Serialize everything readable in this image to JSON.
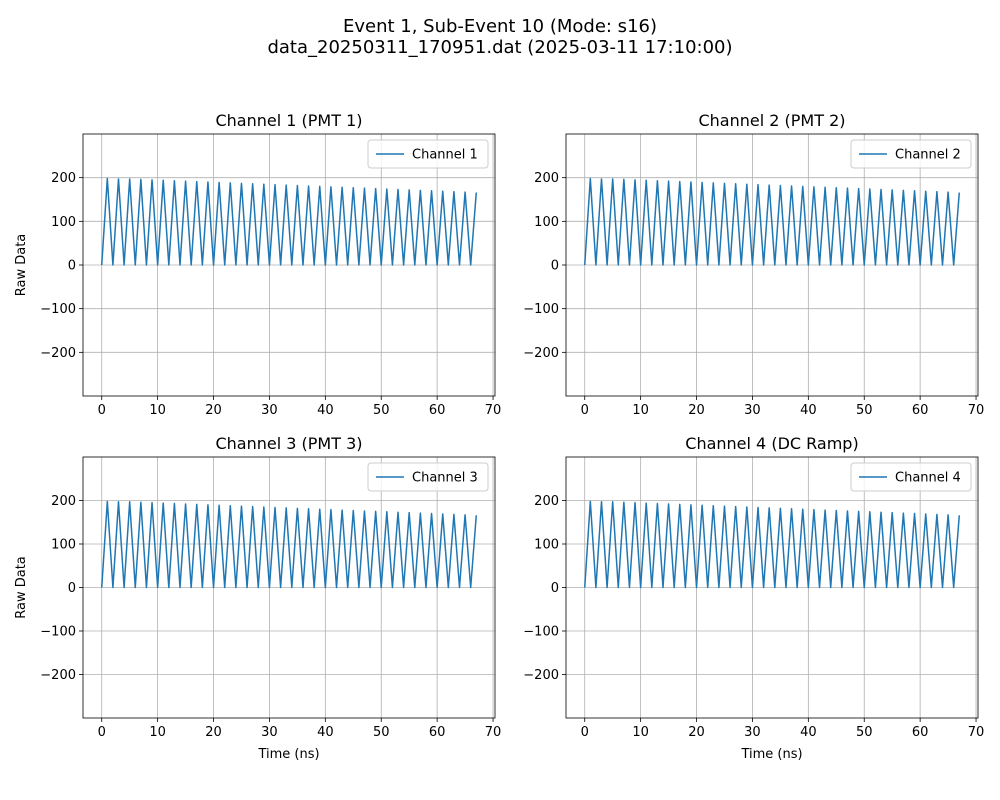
{
  "figure": {
    "title_line1": "Event 1, Sub-Event 10 (Mode: s16)",
    "title_line2": "data_20250311_170951.dat (2025-03-11 17:10:00)"
  },
  "colors": {
    "series": "#1f77b4",
    "grid": "#b0b0b0",
    "axes": "#000000"
  },
  "chart_data": [
    {
      "type": "line",
      "title": "Channel 1 (PMT 1)",
      "xlabel": "",
      "ylabel": "Raw Data",
      "xlim": [
        -3.35,
        70.35
      ],
      "ylim": [
        -300,
        300
      ],
      "xticks": [
        0,
        10,
        20,
        30,
        40,
        50,
        60,
        70
      ],
      "yticks": [
        -200,
        -100,
        0,
        100,
        200
      ],
      "grid": true,
      "legend": "upper right",
      "series": [
        {
          "name": "Channel 1",
          "x": [
            0,
            1,
            2,
            3,
            4,
            5,
            6,
            7,
            8,
            9,
            10,
            11,
            12,
            13,
            14,
            15,
            16,
            17,
            18,
            19,
            20,
            21,
            22,
            23,
            24,
            25,
            26,
            27,
            28,
            29,
            30,
            31,
            32,
            33,
            34,
            35,
            36,
            37,
            38,
            39,
            40,
            41,
            42,
            43,
            44,
            45,
            46,
            47,
            48,
            49,
            50,
            51,
            52,
            53,
            54,
            55,
            56,
            57,
            58,
            59,
            60,
            61,
            62,
            63,
            64,
            65,
            66,
            67
          ],
          "y": [
            0,
            198,
            0,
            197,
            0,
            197,
            0,
            196,
            0,
            195,
            0,
            194,
            0,
            193,
            0,
            192,
            0,
            191,
            0,
            190,
            0,
            189,
            0,
            188,
            0,
            187,
            0,
            186,
            0,
            185,
            0,
            184,
            0,
            183,
            0,
            182,
            0,
            181,
            0,
            180,
            0,
            179,
            0,
            178,
            0,
            177,
            0,
            176,
            0,
            175,
            0,
            174,
            0,
            173,
            0,
            172,
            0,
            171,
            0,
            170,
            0,
            169,
            0,
            168,
            0,
            167,
            0,
            166
          ]
        }
      ]
    },
    {
      "type": "line",
      "title": "Channel 2 (PMT 2)",
      "xlabel": "",
      "ylabel": "",
      "xlim": [
        -3.35,
        70.35
      ],
      "ylim": [
        -300,
        300
      ],
      "xticks": [
        0,
        10,
        20,
        30,
        40,
        50,
        60,
        70
      ],
      "yticks": [
        -200,
        -100,
        0,
        100,
        200
      ],
      "grid": true,
      "legend": "upper right",
      "series": [
        {
          "name": "Channel 2",
          "x": [
            0,
            1,
            2,
            3,
            4,
            5,
            6,
            7,
            8,
            9,
            10,
            11,
            12,
            13,
            14,
            15,
            16,
            17,
            18,
            19,
            20,
            21,
            22,
            23,
            24,
            25,
            26,
            27,
            28,
            29,
            30,
            31,
            32,
            33,
            34,
            35,
            36,
            37,
            38,
            39,
            40,
            41,
            42,
            43,
            44,
            45,
            46,
            47,
            48,
            49,
            50,
            51,
            52,
            53,
            54,
            55,
            56,
            57,
            58,
            59,
            60,
            61,
            62,
            63,
            64,
            65,
            66,
            67
          ],
          "y": [
            0,
            198,
            0,
            197,
            0,
            197,
            0,
            196,
            0,
            195,
            0,
            194,
            0,
            193,
            0,
            192,
            0,
            191,
            0,
            190,
            0,
            189,
            0,
            188,
            0,
            187,
            0,
            186,
            0,
            185,
            0,
            184,
            0,
            183,
            0,
            182,
            0,
            181,
            0,
            180,
            0,
            179,
            0,
            178,
            0,
            177,
            0,
            176,
            0,
            175,
            0,
            174,
            0,
            173,
            0,
            172,
            0,
            171,
            0,
            170,
            0,
            169,
            0,
            168,
            0,
            167,
            0,
            166
          ]
        }
      ]
    },
    {
      "type": "line",
      "title": "Channel 3 (PMT 3)",
      "xlabel": "Time (ns)",
      "ylabel": "Raw Data",
      "xlim": [
        -3.35,
        70.35
      ],
      "ylim": [
        -300,
        300
      ],
      "xticks": [
        0,
        10,
        20,
        30,
        40,
        50,
        60,
        70
      ],
      "yticks": [
        -200,
        -100,
        0,
        100,
        200
      ],
      "grid": true,
      "legend": "upper right",
      "series": [
        {
          "name": "Channel 3",
          "x": [
            0,
            1,
            2,
            3,
            4,
            5,
            6,
            7,
            8,
            9,
            10,
            11,
            12,
            13,
            14,
            15,
            16,
            17,
            18,
            19,
            20,
            21,
            22,
            23,
            24,
            25,
            26,
            27,
            28,
            29,
            30,
            31,
            32,
            33,
            34,
            35,
            36,
            37,
            38,
            39,
            40,
            41,
            42,
            43,
            44,
            45,
            46,
            47,
            48,
            49,
            50,
            51,
            52,
            53,
            54,
            55,
            56,
            57,
            58,
            59,
            60,
            61,
            62,
            63,
            64,
            65,
            66,
            67
          ],
          "y": [
            0,
            198,
            0,
            197,
            0,
            197,
            0,
            196,
            0,
            195,
            0,
            194,
            0,
            193,
            0,
            192,
            0,
            191,
            0,
            190,
            0,
            189,
            0,
            188,
            0,
            187,
            0,
            186,
            0,
            185,
            0,
            184,
            0,
            183,
            0,
            182,
            0,
            181,
            0,
            180,
            0,
            179,
            0,
            178,
            0,
            177,
            0,
            176,
            0,
            175,
            0,
            174,
            0,
            173,
            0,
            172,
            0,
            171,
            0,
            170,
            0,
            169,
            0,
            168,
            0,
            167,
            0,
            166
          ]
        }
      ]
    },
    {
      "type": "line",
      "title": "Channel 4 (DC Ramp)",
      "xlabel": "Time (ns)",
      "ylabel": "",
      "xlim": [
        -3.35,
        70.35
      ],
      "ylim": [
        -300,
        300
      ],
      "xticks": [
        0,
        10,
        20,
        30,
        40,
        50,
        60,
        70
      ],
      "yticks": [
        -200,
        -100,
        0,
        100,
        200
      ],
      "grid": true,
      "legend": "upper right",
      "series": [
        {
          "name": "Channel 4",
          "x": [
            0,
            1,
            2,
            3,
            4,
            5,
            6,
            7,
            8,
            9,
            10,
            11,
            12,
            13,
            14,
            15,
            16,
            17,
            18,
            19,
            20,
            21,
            22,
            23,
            24,
            25,
            26,
            27,
            28,
            29,
            30,
            31,
            32,
            33,
            34,
            35,
            36,
            37,
            38,
            39,
            40,
            41,
            42,
            43,
            44,
            45,
            46,
            47,
            48,
            49,
            50,
            51,
            52,
            53,
            54,
            55,
            56,
            57,
            58,
            59,
            60,
            61,
            62,
            63,
            64,
            65,
            66,
            67
          ],
          "y": [
            0,
            198,
            0,
            197,
            0,
            197,
            0,
            196,
            0,
            195,
            0,
            194,
            0,
            193,
            0,
            192,
            0,
            191,
            0,
            190,
            0,
            189,
            0,
            188,
            0,
            187,
            0,
            186,
            0,
            185,
            0,
            184,
            0,
            183,
            0,
            182,
            0,
            181,
            0,
            180,
            0,
            179,
            0,
            178,
            0,
            177,
            0,
            176,
            0,
            175,
            0,
            174,
            0,
            173,
            0,
            172,
            0,
            171,
            0,
            170,
            0,
            169,
            0,
            168,
            0,
            167,
            0,
            166
          ]
        }
      ]
    }
  ]
}
